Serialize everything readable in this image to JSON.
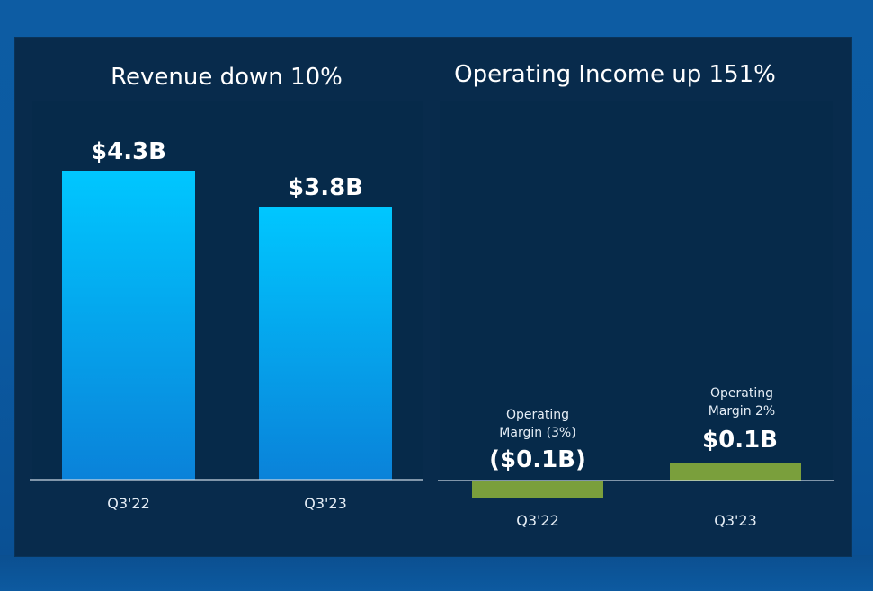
{
  "colors": {
    "revenue_top": "#00c7ff",
    "revenue_bottom": "#0a82d9",
    "income_bar": "#7a9f3c",
    "plot_bg": "#062a4a",
    "axis": "#c9d6e3"
  },
  "chart_data": [
    {
      "type": "bar",
      "title": "Revenue down 10%",
      "categories": [
        "Q3'22",
        "Q3'23"
      ],
      "values": [
        4.3,
        3.8
      ],
      "value_labels": [
        "$4.3B",
        "$3.8B"
      ],
      "unit": "$B",
      "ylim": [
        0,
        5.0
      ],
      "grid": false,
      "legend": "none"
    },
    {
      "type": "bar",
      "title": "Operating Income up 151%",
      "categories": [
        "Q3'22",
        "Q3'23"
      ],
      "values": [
        -0.1,
        0.1
      ],
      "value_labels": [
        "($0.1B)",
        "$0.1B"
      ],
      "notes": [
        [
          "Operating",
          "Margin (3%)"
        ],
        [
          "Operating",
          "Margin 2%"
        ]
      ],
      "unit": "$B",
      "grid": false,
      "legend": "none"
    }
  ]
}
